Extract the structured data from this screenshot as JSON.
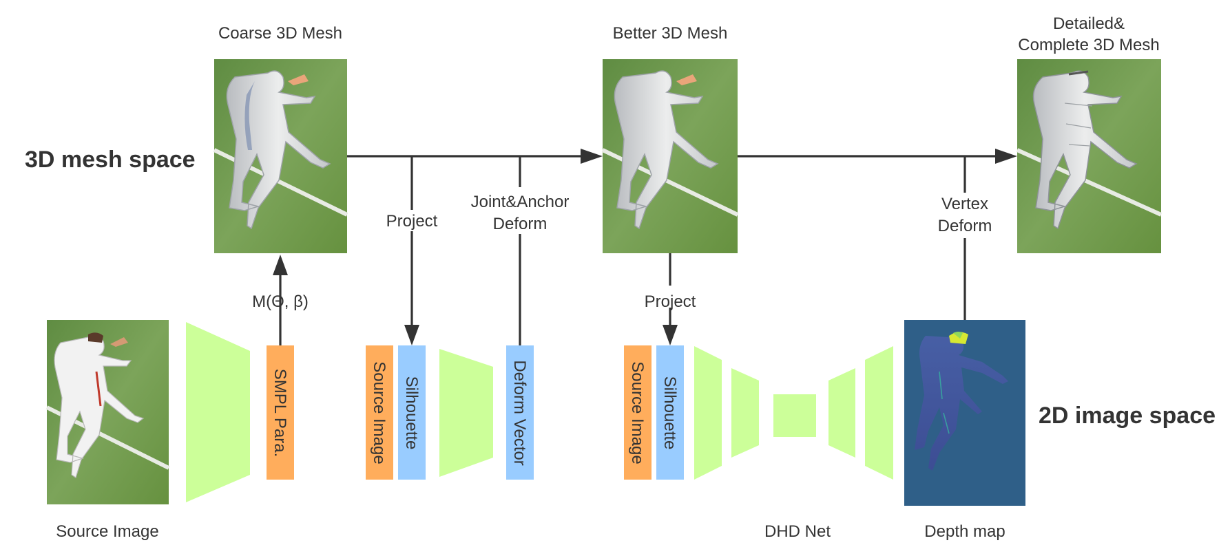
{
  "space_labels": {
    "mesh": "3D mesh space",
    "image": "2D image space"
  },
  "meshes": {
    "coarse": "Coarse 3D Mesh",
    "better": "Better 3D Mesh",
    "detailed_line1": "Detailed&",
    "detailed_line2": "Complete 3D Mesh"
  },
  "edges": {
    "smpl_model": "M(Θ, β)",
    "project_1": "Project",
    "joint_anchor_line1": "Joint&Anchor",
    "joint_anchor_line2": "Deform",
    "project_2": "Project",
    "vertex_line1": "Vertex",
    "vertex_line2": "Deform"
  },
  "blocks": {
    "smpl_para": "SMPL Para.",
    "source_image_1": "Source Image",
    "silhouette_1": "Silhouette",
    "deform_vector": "Deform Vector",
    "source_image_2": "Source Image",
    "silhouette_2": "Silhouette"
  },
  "captions": {
    "source_image": "Source Image",
    "dhd_net": "DHD Net",
    "depth_map": "Depth map"
  },
  "colors": {
    "network": "#ccff99",
    "orange_block": "#ffad5c",
    "blue_block": "#99ccff",
    "depth_bg": "#2f5f88",
    "grass": "#6f9a4e",
    "mesh": "#d8dadc",
    "line": "#333333"
  }
}
